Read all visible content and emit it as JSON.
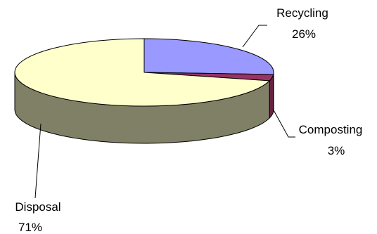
{
  "chart_data": {
    "type": "pie",
    "style": "3d-exploded-none",
    "title": "",
    "legend": "none",
    "categories": [
      "Recycling",
      "Composting",
      "Disposal"
    ],
    "values": [
      26,
      3,
      71
    ],
    "value_labels": [
      "26%",
      "3%",
      "71%"
    ],
    "colors": {
      "Recycling": {
        "top": "#9999ff",
        "side": "#6666aa"
      },
      "Composting": {
        "top": "#993366",
        "side": "#662244"
      },
      "Disposal": {
        "top": "#ffffcc",
        "side": "#808066"
      }
    },
    "start": "top-center",
    "direction": "clockwise"
  }
}
